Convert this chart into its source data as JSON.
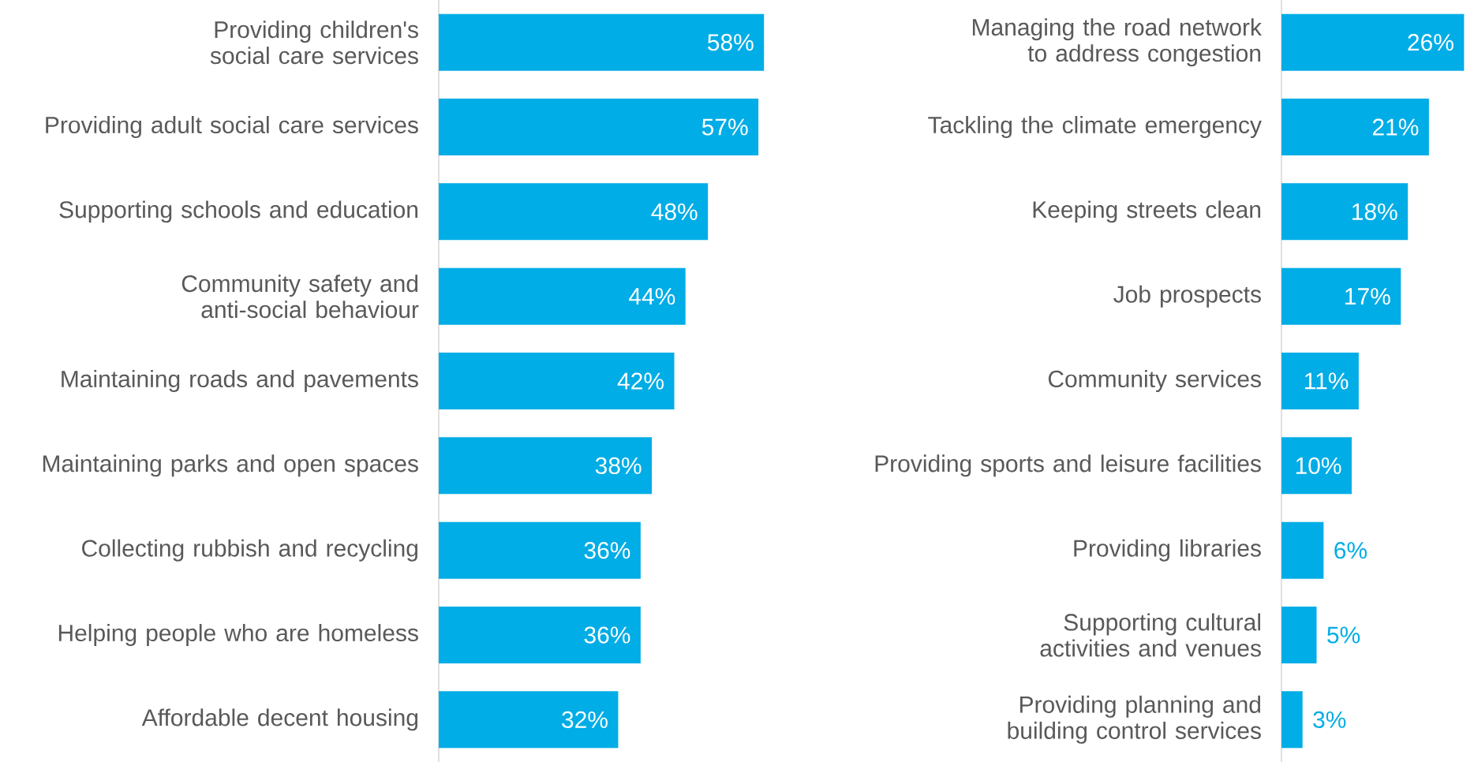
{
  "chart_data": [
    {
      "type": "bar",
      "orientation": "horizontal",
      "color": "#00ade6",
      "categories": [
        "Providing children's social care services",
        "Providing adult social care services",
        "Supporting schools and education",
        "Community safety and anti-social behaviour",
        "Maintaining roads and pavements",
        "Maintaining parks and open spaces",
        "Collecting rubbish and recycling",
        "Helping people who are homeless",
        "Affordable decent housing"
      ],
      "values": [
        58,
        57,
        48,
        44,
        42,
        38,
        36,
        36,
        32
      ],
      "value_labels": [
        "58%",
        "57%",
        "48%",
        "44%",
        "42%",
        "38%",
        "36%",
        "36%",
        "32%"
      ]
    },
    {
      "type": "bar",
      "orientation": "horizontal",
      "color": "#00ade6",
      "categories": [
        "Managing the road network to address congestion",
        "Tackling the climate emergency",
        "Keeping streets clean",
        "Job prospects",
        "Community services",
        "Providing sports and leisure facilities",
        "Providing libraries",
        "Supporting cultural activities and venues",
        "Providing planning and building control services"
      ],
      "values": [
        26,
        21,
        18,
        17,
        11,
        10,
        6,
        5,
        3
      ],
      "value_labels": [
        "26%",
        "21%",
        "18%",
        "17%",
        "11%",
        "10%",
        "6%",
        "5%",
        "3%"
      ]
    }
  ]
}
